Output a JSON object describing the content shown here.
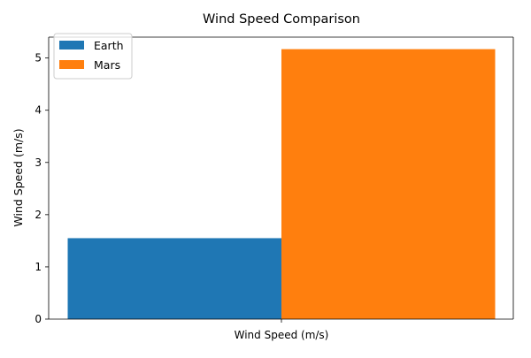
{
  "chart_data": {
    "type": "bar",
    "title": "Wind Speed Comparison",
    "xlabel": "Wind Speed (m/s)",
    "ylabel": "Wind Speed (m/s)",
    "categories": [
      "Wind Speed (m/s)"
    ],
    "series": [
      {
        "name": "Earth",
        "values": [
          1.55
        ],
        "color": "#1f77b4"
      },
      {
        "name": "Mars",
        "values": [
          5.17
        ],
        "color": "#ff7f0e"
      }
    ],
    "ylim": [
      0,
      5.4
    ],
    "yticks": [
      0,
      1,
      2,
      3,
      4,
      5
    ],
    "ytick_labels": [
      "0",
      "1",
      "2",
      "3",
      "4",
      "5"
    ],
    "grid": false,
    "legend_placement": "top-left"
  }
}
